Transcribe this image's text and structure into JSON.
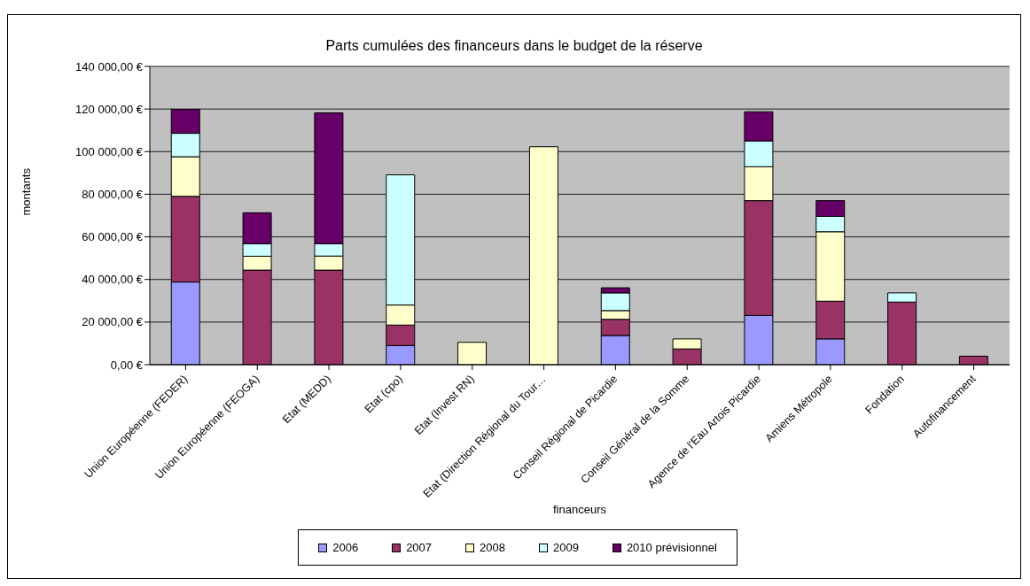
{
  "chart_data": {
    "type": "bar",
    "title": "Parts cumulées des financeurs dans le budget de la réserve",
    "xlabel": "financeurs",
    "ylabel": "montants",
    "categories": [
      "Union Européenne (FEDER)",
      "Union Européenne (FEOGA)",
      "Etat (MEDD)",
      "Etat (cpo)",
      "Etat (Invest RN)",
      "Etat (Direction Régional du Tour…",
      "Conseil Régional de Picardie",
      "Conseil Général de la Somme",
      "Agence de l'Eau Artois Picardie",
      "Amiens Métropole",
      "Fondation",
      "Autofinancement"
    ],
    "series": [
      {
        "name": "2006",
        "color": "#9999ff",
        "values": [
          38800,
          0,
          0,
          9000,
          0,
          0,
          13700,
          0,
          23100,
          12100,
          0,
          0
        ]
      },
      {
        "name": "2007",
        "color": "#993366",
        "values": [
          40200,
          44400,
          44400,
          9600,
          0,
          0,
          7600,
          7400,
          53900,
          17700,
          29400,
          4000
        ]
      },
      {
        "name": "2008",
        "color": "#ffffcc",
        "values": [
          18600,
          6500,
          6600,
          9400,
          10500,
          102300,
          4100,
          4700,
          15900,
          32600,
          0,
          0
        ]
      },
      {
        "name": "2009",
        "color": "#ccffff",
        "values": [
          11000,
          5900,
          5800,
          61100,
          0,
          0,
          8300,
          0,
          12100,
          7200,
          4300,
          0
        ]
      },
      {
        "name": "2010 prévisionnel",
        "color": "#660066",
        "values": [
          11200,
          14500,
          61400,
          0,
          0,
          0,
          2400,
          0,
          13700,
          7400,
          0,
          0
        ]
      }
    ],
    "stacked": true,
    "ylim": [
      0,
      140000
    ],
    "yticks": [
      {
        "value": 0,
        "label": "0,00 €"
      },
      {
        "value": 20000,
        "label": "20 000,00 €"
      },
      {
        "value": 40000,
        "label": "40 000,00 €"
      },
      {
        "value": 60000,
        "label": "60 000,00 €"
      },
      {
        "value": 80000,
        "label": "80 000,00 €"
      },
      {
        "value": 100000,
        "label": "100 000,00 €"
      },
      {
        "value": 120000,
        "label": "120 000,00 €"
      },
      {
        "value": 140000,
        "label": "140 000,00 €"
      }
    ],
    "grid": "y",
    "legend": "bottom"
  }
}
